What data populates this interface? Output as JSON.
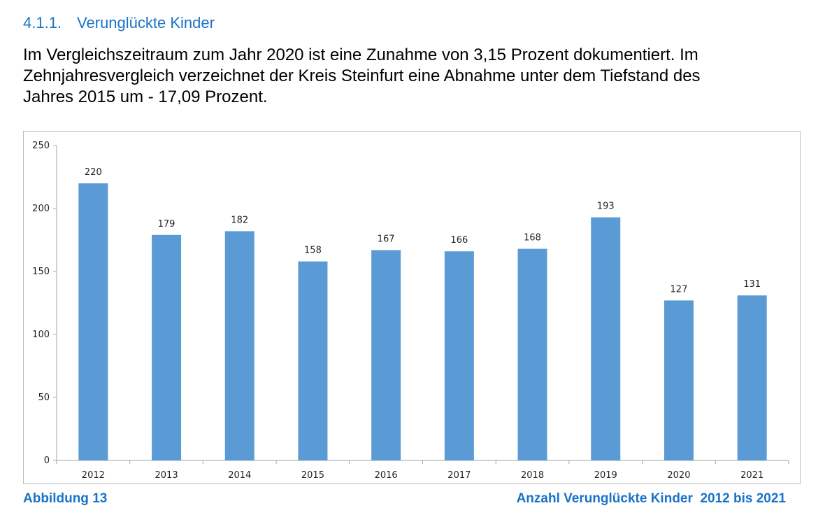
{
  "section": {
    "number": "4.1.1.",
    "title": "Verunglückte Kinder"
  },
  "intro": {
    "line1": "Im Vergleichszeitraum zum Jahr 2020 ist eine Zunahme von 3,15 Prozent dokumentiert. Im",
    "line2": "Zehnjahresvergleich verzeichnet der Kreis Steinfurt  eine Abnahme unter dem Tiefstand des",
    "line3": "Jahres 2015 um - 17,09 Prozent."
  },
  "caption": {
    "left": "Abbildung 13",
    "right": "Anzahl Verunglückte Kinder  2012 bis 2021"
  },
  "colors": {
    "bar": "#5b9bd5",
    "accent": "#1a73c7"
  },
  "chart_data": {
    "type": "bar",
    "categories": [
      "2012",
      "2013",
      "2014",
      "2015",
      "2016",
      "2017",
      "2018",
      "2019",
      "2020",
      "2021"
    ],
    "values": [
      220,
      179,
      182,
      158,
      167,
      166,
      168,
      193,
      127,
      131
    ],
    "ylim": [
      0,
      250
    ],
    "yticks": [
      0,
      50,
      100,
      150,
      200,
      250
    ],
    "grid": false,
    "data_labels": true
  }
}
